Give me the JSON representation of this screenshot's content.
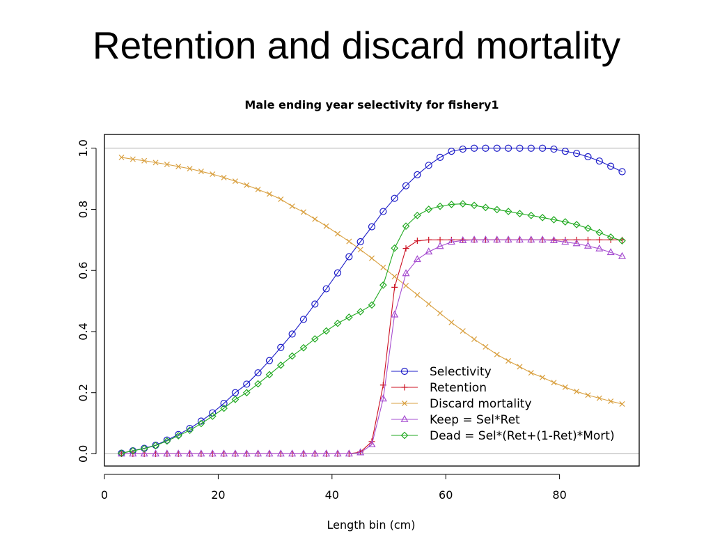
{
  "slide": {
    "title": "Retention and discard mortality"
  },
  "chart_data": {
    "type": "line",
    "title": "Male ending year selectivity for fishery1",
    "xlabel": "Length bin (cm)",
    "ylabel": "",
    "xlim": [
      0,
      94
    ],
    "ylim": [
      -0.04,
      1.045
    ],
    "x_ticks": [
      0,
      20,
      40,
      60,
      80
    ],
    "y_ticks": [
      0.0,
      0.2,
      0.4,
      0.6,
      0.8,
      1.0
    ],
    "reference_lines": [
      0.0,
      1.0
    ],
    "grid": false,
    "legend_position": "bottom-right",
    "x": [
      3,
      5,
      7,
      9,
      11,
      13,
      15,
      17,
      19,
      21,
      23,
      25,
      27,
      29,
      31,
      33,
      35,
      37,
      39,
      41,
      43,
      45,
      47,
      49,
      51,
      53,
      55,
      57,
      59,
      61,
      63,
      65,
      67,
      69,
      71,
      73,
      75,
      77,
      79,
      81,
      83,
      85,
      87,
      89,
      91
    ],
    "series": [
      {
        "name": "Selectivity",
        "color": "#1c1cc8",
        "marker": "circle",
        "values": [
          0.002,
          0.01,
          0.018,
          0.028,
          0.045,
          0.063,
          0.083,
          0.107,
          0.134,
          0.165,
          0.2,
          0.228,
          0.265,
          0.305,
          0.348,
          0.392,
          0.44,
          0.49,
          0.54,
          0.592,
          0.645,
          0.694,
          0.743,
          0.793,
          0.836,
          0.877,
          0.913,
          0.944,
          0.97,
          0.99,
          0.997,
          1.0,
          1.0,
          1.0,
          1.0,
          1.0,
          1.0,
          1.0,
          0.997,
          0.99,
          0.983,
          0.972,
          0.958,
          0.941,
          0.923
        ]
      },
      {
        "name": "Retention",
        "color": "#cc1122",
        "marker": "plus",
        "values": [
          0,
          0,
          0,
          0,
          0,
          0,
          0,
          0,
          0,
          0,
          0,
          0,
          0,
          0,
          0,
          0,
          0,
          0,
          0,
          0,
          0,
          0.006,
          0.04,
          0.225,
          0.545,
          0.672,
          0.697,
          0.7,
          0.7,
          0.7,
          0.7,
          0.7,
          0.7,
          0.7,
          0.7,
          0.7,
          0.7,
          0.7,
          0.7,
          0.7,
          0.7,
          0.7,
          0.7,
          0.7,
          0.7
        ]
      },
      {
        "name": "Discard mortality",
        "color": "#d9a040",
        "marker": "x",
        "values": [
          0.97,
          0.964,
          0.959,
          0.953,
          0.947,
          0.94,
          0.933,
          0.924,
          0.915,
          0.904,
          0.892,
          0.879,
          0.865,
          0.85,
          0.833,
          0.81,
          0.791,
          0.768,
          0.745,
          0.72,
          0.695,
          0.668,
          0.64,
          0.61,
          0.58,
          0.55,
          0.52,
          0.49,
          0.46,
          0.43,
          0.402,
          0.375,
          0.35,
          0.325,
          0.304,
          0.285,
          0.265,
          0.25,
          0.233,
          0.218,
          0.204,
          0.192,
          0.182,
          0.172,
          0.163
        ]
      },
      {
        "name": "Keep = Sel*Ret",
        "color": "#a64dd0",
        "marker": "triangle",
        "values": [
          0,
          0,
          0,
          0,
          0,
          0,
          0,
          0,
          0,
          0,
          0,
          0,
          0,
          0,
          0,
          0,
          0,
          0,
          0,
          0,
          0,
          0.004,
          0.03,
          0.18,
          0.455,
          0.59,
          0.636,
          0.661,
          0.679,
          0.693,
          0.698,
          0.7,
          0.7,
          0.7,
          0.7,
          0.7,
          0.7,
          0.7,
          0.698,
          0.693,
          0.688,
          0.68,
          0.671,
          0.659,
          0.646
        ]
      },
      {
        "name": "Dead = Sel*(Ret+(1-Ret)*Mort)",
        "color": "#22aa22",
        "marker": "diamond",
        "values": [
          0.002,
          0.01,
          0.017,
          0.027,
          0.042,
          0.059,
          0.077,
          0.099,
          0.123,
          0.149,
          0.178,
          0.2,
          0.229,
          0.259,
          0.29,
          0.32,
          0.347,
          0.376,
          0.402,
          0.427,
          0.447,
          0.465,
          0.487,
          0.552,
          0.673,
          0.745,
          0.78,
          0.8,
          0.81,
          0.816,
          0.818,
          0.813,
          0.806,
          0.799,
          0.793,
          0.786,
          0.78,
          0.773,
          0.766,
          0.759,
          0.75,
          0.738,
          0.724,
          0.709,
          0.697
        ]
      }
    ]
  }
}
